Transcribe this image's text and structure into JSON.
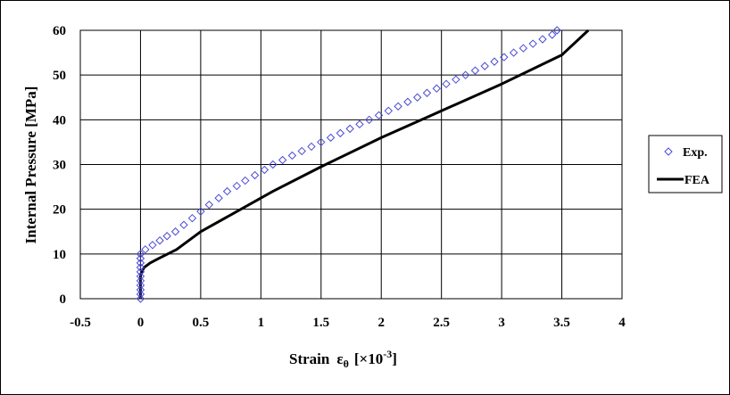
{
  "chart_data": {
    "type": "line",
    "xlabel_main": "Strain",
    "xlabel_symbol": "ε",
    "xlabel_subscript": "θ",
    "xlabel_bracket": "[×10",
    "xlabel_exponent": "-3",
    "xlabel_close": "]",
    "ylabel": "Internal  Pressure  [MPa]",
    "xlim": [
      -0.5,
      4
    ],
    "ylim": [
      0,
      60
    ],
    "x_ticks": [
      "-0.5",
      "0",
      "0.5",
      "1",
      "1.5",
      "2",
      "2.5",
      "3",
      "3.5",
      "4"
    ],
    "y_ticks": [
      "0",
      "10",
      "20",
      "30",
      "40",
      "50",
      "60"
    ],
    "grid": true,
    "legend_position": "right",
    "series": [
      {
        "name": "Exp.",
        "marker": "diamond-open",
        "color": "#4a4ad8",
        "x": [
          0,
          0,
          0,
          0,
          0,
          0,
          0,
          0,
          0,
          0,
          0,
          0.04,
          0.1,
          0.16,
          0.22,
          0.29,
          0.36,
          0.43,
          0.5,
          0.57,
          0.65,
          0.72,
          0.8,
          0.87,
          0.95,
          1.03,
          1.1,
          1.18,
          1.26,
          1.34,
          1.42,
          1.5,
          1.58,
          1.66,
          1.74,
          1.82,
          1.9,
          1.98,
          2.06,
          2.14,
          2.22,
          2.3,
          2.38,
          2.46,
          2.54,
          2.62,
          2.7,
          2.78,
          2.86,
          2.94,
          3.02,
          3.1,
          3.18,
          3.26,
          3.34,
          3.42,
          3.46
        ],
        "y": [
          0,
          1,
          2,
          3,
          4,
          5,
          6,
          7,
          8,
          9,
          10,
          11,
          12,
          13,
          14,
          15,
          16.5,
          18,
          19.5,
          21,
          22.5,
          24,
          25.2,
          26.4,
          27.6,
          28.8,
          30,
          31,
          32,
          33,
          34,
          35,
          36,
          37,
          38,
          39,
          40,
          41,
          42,
          43,
          44,
          45,
          46,
          47,
          48,
          49,
          50,
          51,
          52,
          53,
          54,
          55,
          56,
          57,
          58,
          59,
          60
        ]
      },
      {
        "name": "FEA",
        "line": "solid",
        "color": "#000000",
        "x": [
          0,
          0,
          0,
          0.01,
          0.03,
          0.08,
          0.15,
          0.3,
          0.5,
          0.8,
          1.1,
          1.5,
          2.0,
          2.5,
          3.0,
          3.5,
          3.72
        ],
        "y": [
          0,
          3,
          5,
          6,
          7,
          8,
          9,
          11,
          15,
          19.5,
          24,
          29.5,
          36,
          42,
          48,
          54.5,
          60
        ]
      }
    ]
  }
}
